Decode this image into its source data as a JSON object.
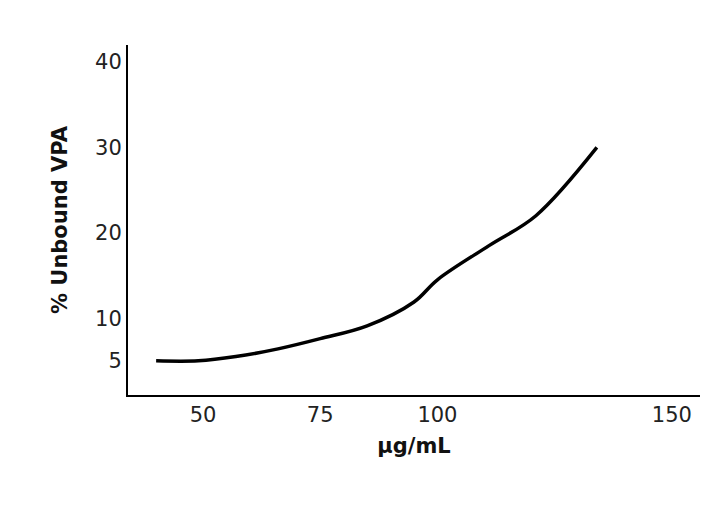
{
  "chart_data": {
    "type": "line",
    "x_label": "µg/mL",
    "y_label": "% Unbound VPA",
    "x": [
      40,
      49,
      57,
      66,
      75,
      85,
      95,
      100,
      111,
      121,
      134
    ],
    "values": [
      5,
      5,
      5.5,
      6.4,
      7.6,
      9.1,
      11.9,
      14.5,
      18.5,
      22,
      30
    ],
    "color": "#000000",
    "xlim": [
      34,
      156
    ],
    "xticks": [
      50,
      75,
      100,
      150
    ],
    "ylim": [
      1,
      42
    ],
    "yticks": [
      5,
      10,
      20,
      30,
      40
    ],
    "grid": false
  }
}
